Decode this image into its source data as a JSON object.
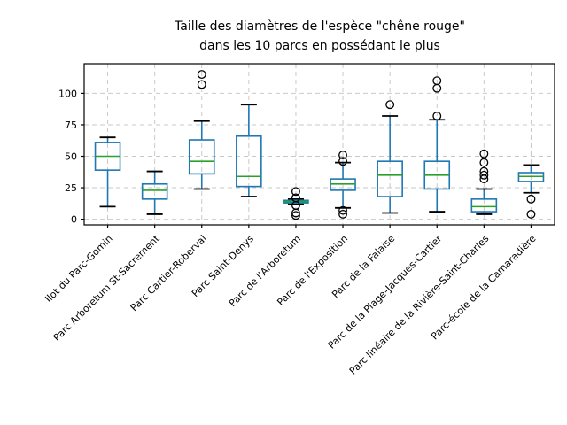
{
  "figure": {
    "title_line1": "Taille des diamètres de l'espèce \"chêne rouge\"",
    "title_line2": "dans les 10 parcs en possédant le plus"
  },
  "chart_data": {
    "type": "boxplot",
    "title": "Taille des diamètres de l'espèce \"chêne rouge\"\ndans les 10 parcs en possédant le plus",
    "xlabel": "",
    "ylabel": "",
    "grid": true,
    "legend": false,
    "yticks": [
      0,
      25,
      50,
      75,
      100
    ],
    "ylim": [
      -4.5,
      123.5
    ],
    "categories": [
      "Ilot du Parc-Gomin",
      "Parc Arboretum St-Sacrement",
      "Parc Cartier-Roberval",
      "Parc Saint-Denys",
      "Parc de l'Arboretum",
      "Parc de l'Exposition",
      "Parc de la Falaise",
      "Parc de la Plage-Jacques-Cartier",
      "Parc linéaire de la Rivière-Saint-Charles",
      "Parc-école de la Camaradière"
    ],
    "series": [
      {
        "name": "Ilot du Parc-Gomin",
        "whislo": 10,
        "q1": 39,
        "med": 50,
        "q3": 61,
        "whishi": 65,
        "fliers": []
      },
      {
        "name": "Parc Arboretum St-Sacrement",
        "whislo": 4,
        "q1": 16,
        "med": 23,
        "q3": 28,
        "whishi": 38,
        "fliers": []
      },
      {
        "name": "Parc Cartier-Roberval",
        "whislo": 24,
        "q1": 36,
        "med": 46,
        "q3": 63,
        "whishi": 78,
        "fliers": [
          115,
          107
        ]
      },
      {
        "name": "Parc Saint-Denys",
        "whislo": 18,
        "q1": 26,
        "med": 34,
        "q3": 66,
        "whishi": 91,
        "fliers": []
      },
      {
        "name": "Parc de l'Arboretum",
        "whislo": 12,
        "q1": 13,
        "med": 14,
        "q3": 15,
        "whishi": 16,
        "fliers": [
          22,
          17,
          11,
          5,
          3
        ]
      },
      {
        "name": "Parc de l'Exposition",
        "whislo": 9,
        "q1": 23,
        "med": 28,
        "q3": 32,
        "whishi": 45,
        "fliers": [
          51,
          46,
          7,
          4
        ]
      },
      {
        "name": "Parc de la Falaise",
        "whislo": 5,
        "q1": 18,
        "med": 35,
        "q3": 46,
        "whishi": 82,
        "fliers": [
          91
        ]
      },
      {
        "name": "Parc de la Plage-Jacques-Cartier",
        "whislo": 6,
        "q1": 24,
        "med": 35,
        "q3": 46,
        "whishi": 79,
        "fliers": [
          110,
          104,
          82
        ]
      },
      {
        "name": "Parc linéaire de la Rivière-Saint-Charles",
        "whislo": 4,
        "q1": 6,
        "med": 10,
        "q3": 16,
        "whishi": 24,
        "fliers": [
          52,
          45,
          38,
          35,
          32
        ]
      },
      {
        "name": "Parc-école de la Camaradière",
        "whislo": 21,
        "q1": 30,
        "med": 34,
        "q3": 37,
        "whishi": 43,
        "fliers": [
          16,
          4
        ]
      }
    ],
    "colors": {
      "box": "#1f77b4",
      "whisker": "#1f77b4",
      "median": "#2ca02c",
      "cap": "#000000",
      "flier_edge": "#000000",
      "grid": "#c9c9c9",
      "spine": "#000000",
      "text": "#000000",
      "background": "#ffffff"
    }
  }
}
